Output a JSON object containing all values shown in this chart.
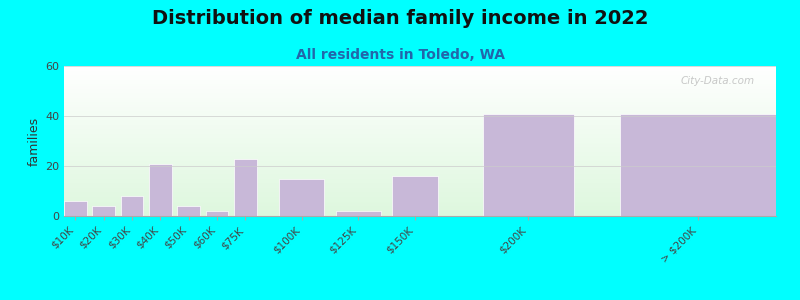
{
  "title": "Distribution of median family income in 2022",
  "subtitle": "All residents in Toledo, WA",
  "categories": [
    "$10K",
    "$20K",
    "$30K",
    "$40K",
    "$50K",
    "$60K",
    "$75K",
    "$100K",
    "$125K",
    "$150K",
    "$200K",
    "> $200K"
  ],
  "values": [
    6,
    4,
    8,
    21,
    4,
    2,
    23,
    15,
    2,
    16,
    41,
    41
  ],
  "x_positions": [
    0,
    1,
    2,
    3,
    4,
    5,
    6,
    8,
    10,
    12,
    16,
    22
  ],
  "bar_widths": [
    0.8,
    0.8,
    0.8,
    0.8,
    0.8,
    0.8,
    0.8,
    1.6,
    1.6,
    1.6,
    3.2,
    5.5
  ],
  "bar_color": "#c8b8d8",
  "bar_edge_color": "#ffffff",
  "background_color": "#00ffff",
  "title_fontsize": 14,
  "subtitle_fontsize": 10,
  "subtitle_color": "#2266aa",
  "ylabel": "families",
  "ylim": [
    0,
    60
  ],
  "yticks": [
    0,
    20,
    40,
    60
  ],
  "watermark": "City-Data.com"
}
